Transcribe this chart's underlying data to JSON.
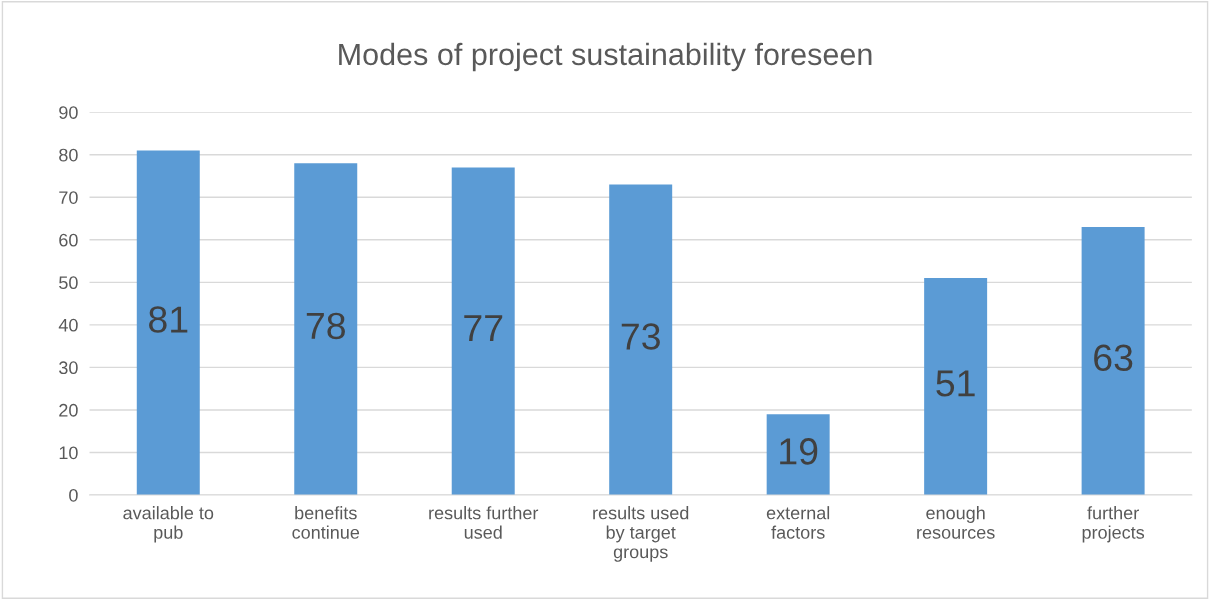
{
  "chart_data": {
    "type": "bar",
    "title": "Modes of project sustainability foreseen",
    "categories": [
      "available to\npub",
      "benefits\ncontinue",
      "results further\nused",
      "results used\nby target\ngroups",
      "external\nfactors",
      "enough\nresources",
      "further\nprojects"
    ],
    "values": [
      81,
      78,
      77,
      73,
      19,
      51,
      63
    ],
    "color": "#5b9bd5",
    "ylim": [
      0,
      90
    ],
    "yticks": [
      0,
      10,
      20,
      30,
      40,
      50,
      60,
      70,
      80,
      90
    ],
    "grid": "y",
    "data_labels": true,
    "legend": false
  }
}
